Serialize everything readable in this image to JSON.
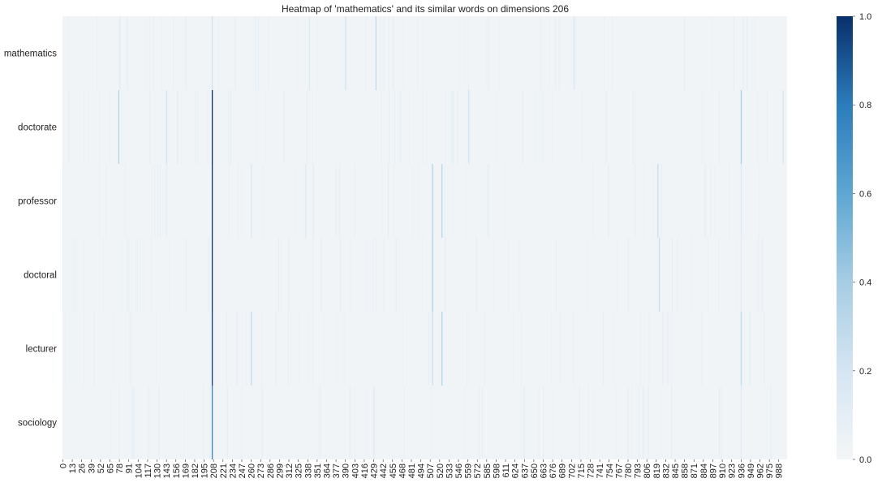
{
  "chart_data": {
    "type": "heatmap",
    "title": "Heatmap of 'mathematics' and its similar words on dimensions 206",
    "rows": [
      "mathematics",
      "doctorate",
      "professor",
      "doctoral",
      "lecturer",
      "sociology"
    ],
    "x_tick_labels": [
      "0",
      "13",
      "26",
      "39",
      "52",
      "65",
      "78",
      "91",
      "104",
      "117",
      "130",
      "143",
      "156",
      "169",
      "182",
      "195",
      "208",
      "221",
      "234",
      "247",
      "260",
      "273",
      "286",
      "299",
      "312",
      "325",
      "338",
      "351",
      "364",
      "377",
      "390",
      "403",
      "416",
      "429",
      "442",
      "455",
      "468",
      "481",
      "494",
      "507",
      "520",
      "533",
      "546",
      "559",
      "572",
      "585",
      "598",
      "611",
      "624",
      "637",
      "650",
      "663",
      "676",
      "689",
      "702",
      "715",
      "728",
      "741",
      "754",
      "767",
      "780",
      "793",
      "806",
      "819",
      "832",
      "845",
      "858",
      "871",
      "884",
      "897",
      "910",
      "923",
      "936",
      "949",
      "962",
      "975",
      "988"
    ],
    "n_columns": 1000,
    "highlight_dimension": 206,
    "base_value": 0.02,
    "highlights": {
      "mathematics": [
        [
          206,
          0.22
        ],
        [
          340,
          0.15
        ],
        [
          390,
          0.22
        ],
        [
          432,
          0.28
        ],
        [
          705,
          0.15
        ],
        [
          944,
          0.1
        ]
      ],
      "doctorate": [
        [
          206,
          1.0
        ],
        [
          77,
          0.35
        ],
        [
          143,
          0.2
        ],
        [
          560,
          0.22
        ],
        [
          936,
          0.4
        ],
        [
          994,
          0.18
        ],
        [
          158,
          0.12
        ]
      ],
      "professor": [
        [
          206,
          0.98
        ],
        [
          260,
          0.18
        ],
        [
          335,
          0.15
        ],
        [
          510,
          0.35
        ],
        [
          523,
          0.32
        ],
        [
          821,
          0.25
        ],
        [
          936,
          0.15
        ],
        [
          143,
          0.1
        ]
      ],
      "doctoral": [
        [
          206,
          0.98
        ],
        [
          510,
          0.38
        ],
        [
          823,
          0.25
        ],
        [
          936,
          0.12
        ]
      ],
      "lecturer": [
        [
          206,
          0.95
        ],
        [
          260,
          0.28
        ],
        [
          510,
          0.25
        ],
        [
          523,
          0.35
        ],
        [
          936,
          0.3
        ],
        [
          948,
          0.12
        ]
      ],
      "sociology": [
        [
          206,
          0.75
        ],
        [
          936,
          0.12
        ],
        [
          780,
          0.08
        ]
      ]
    },
    "colorbar": {
      "range": [
        0,
        1
      ],
      "ticks": [
        "0.0",
        "0.2",
        "0.4",
        "0.6",
        "0.8",
        "1.0"
      ],
      "colormap": "Blues",
      "low_color": "#f3f6f7",
      "high_color": "#08306b"
    }
  }
}
